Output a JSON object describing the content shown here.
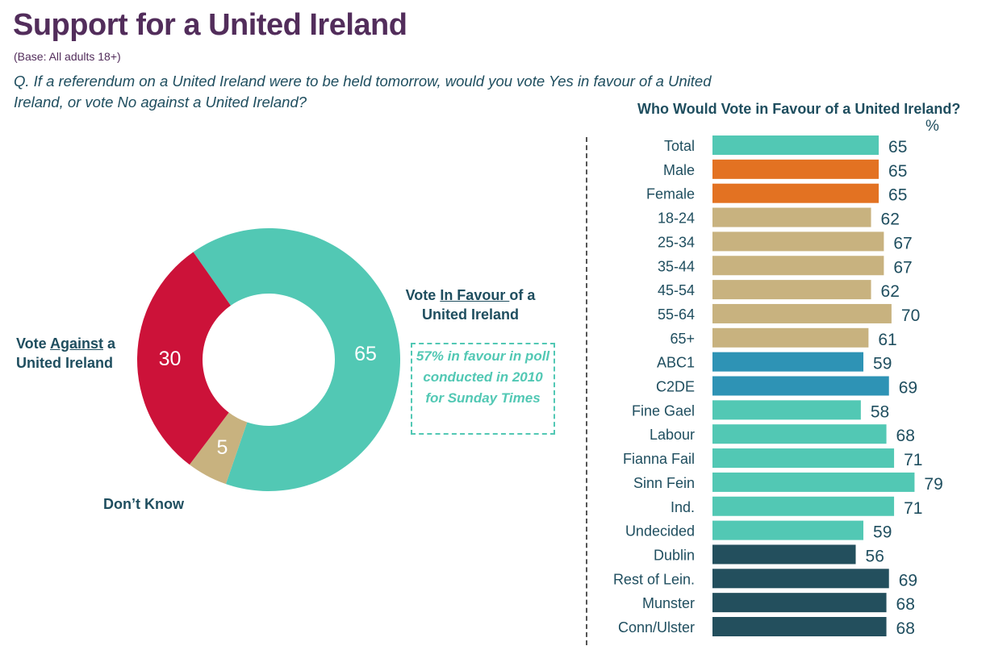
{
  "header": {
    "title": "Support for a United Ireland",
    "base": "(Base: All adults 18+)",
    "question": "Q. If a referendum on a United Ireland were to be held tomorrow, would you vote Yes in favour of a United Ireland, or vote No against a United Ireland?"
  },
  "labels": {
    "favour_pre": "Vote ",
    "favour_u": "In Favour ",
    "favour_post": "of a",
    "favour_line2": "United Ireland",
    "against_pre": "Vote ",
    "against_u": "Against",
    "against_post": " a",
    "against_line2": "United Ireland",
    "dont_know": "Don’t Know"
  },
  "note": "57% in favour in poll conducted in 2010 for Sunday Times",
  "chart_data": [
    {
      "type": "pie",
      "title": "",
      "donut": true,
      "categories": [
        "Vote In Favour of a United Ireland",
        "Vote Against a United Ireland",
        "Don’t Know"
      ],
      "values": [
        65,
        30,
        5
      ],
      "colors": [
        "#52c8b4",
        "#cc1239",
        "#c8b27f"
      ]
    },
    {
      "type": "bar",
      "orientation": "horizontal",
      "title": "Who Would Vote in Favour of a United Ireland?",
      "unit_label": "%",
      "xlim": [
        0,
        100
      ],
      "categories": [
        "Total",
        "Male",
        "Female",
        "18-24",
        "25-34",
        "35-44",
        "45-54",
        "55-64",
        "65+",
        "ABC1",
        "C2DE",
        "Fine Gael",
        "Labour",
        "Fianna Fail",
        "Sinn Fein",
        "Ind.",
        "Undecided",
        "Dublin",
        "Rest of Lein.",
        "Munster",
        "Conn/Ulster"
      ],
      "values": [
        65,
        65,
        65,
        62,
        67,
        67,
        62,
        70,
        61,
        59,
        69,
        58,
        68,
        71,
        79,
        71,
        59,
        56,
        69,
        68,
        68
      ],
      "colors": [
        "#52c8b4",
        "#e37222",
        "#e37222",
        "#c8b27f",
        "#c8b27f",
        "#c8b27f",
        "#c8b27f",
        "#c8b27f",
        "#c8b27f",
        "#2e93b5",
        "#2e93b5",
        "#52c8b4",
        "#52c8b4",
        "#52c8b4",
        "#52c8b4",
        "#52c8b4",
        "#52c8b4",
        "#234f5d",
        "#234f5d",
        "#234f5d",
        "#234f5d"
      ]
    }
  ]
}
